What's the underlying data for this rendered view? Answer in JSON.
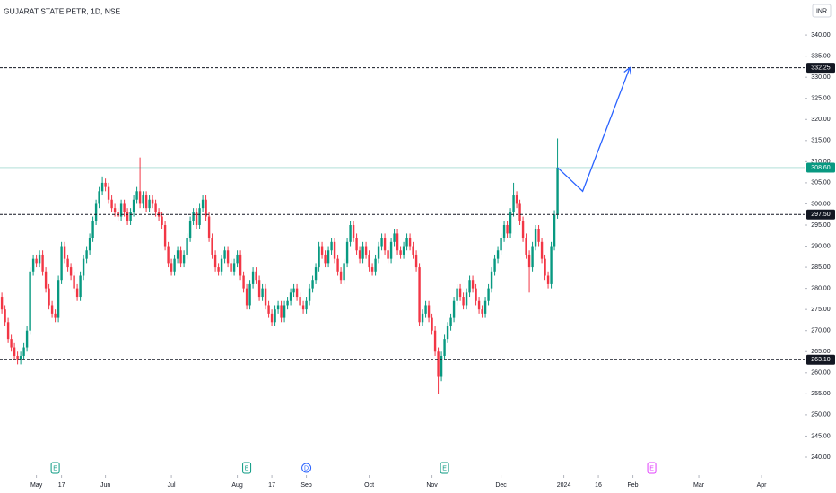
{
  "chart_data": {
    "type": "candlestick",
    "title": "GUJARAT STATE PETR, 1D, NSE",
    "currency": "INR",
    "up_color": "#089981",
    "down_color": "#f23645",
    "open": [
      278,
      275,
      272,
      268,
      266,
      264,
      263,
      264,
      266,
      270,
      284,
      287,
      286,
      288,
      284,
      280,
      276,
      274,
      273,
      282,
      290,
      287,
      285,
      283,
      280,
      278,
      283,
      287,
      289,
      292,
      296,
      300,
      303,
      305,
      304,
      301,
      299,
      298,
      297,
      300,
      298,
      296,
      298,
      301,
      303,
      300,
      302,
      299,
      301,
      300,
      298,
      297,
      295,
      290,
      286,
      284,
      287,
      289,
      286,
      288,
      292,
      296,
      298,
      295,
      299,
      301,
      297,
      292,
      288,
      285,
      284,
      287,
      289,
      286,
      284,
      286,
      288,
      283,
      280,
      276,
      281,
      284,
      282,
      278,
      280,
      276,
      274,
      272,
      275,
      276,
      273,
      276,
      277,
      279,
      280,
      278,
      276,
      275,
      277,
      280,
      282,
      285,
      290,
      288,
      286,
      289,
      291,
      287,
      284,
      282,
      286,
      291,
      295,
      292,
      289,
      287,
      290,
      288,
      285,
      284,
      287,
      290,
      292,
      289,
      287,
      291,
      293,
      289,
      288,
      290,
      292,
      290,
      288,
      285,
      272,
      274,
      276,
      273,
      270,
      265,
      259,
      264,
      268,
      271,
      273,
      277,
      280,
      278,
      276,
      279,
      282,
      280,
      277,
      275,
      274,
      277,
      280,
      284,
      287,
      289,
      292,
      295,
      293,
      298,
      302,
      300,
      296,
      292,
      288,
      285,
      290,
      294,
      291,
      287,
      283,
      281,
      290,
      297.5
    ],
    "high": [
      279,
      276,
      273,
      269,
      267,
      265,
      265,
      267,
      271,
      285,
      288,
      288,
      289,
      289,
      285,
      281,
      277,
      275,
      283,
      291,
      291,
      288,
      286,
      284,
      281,
      284,
      288,
      290,
      293,
      297,
      301,
      304,
      306.5,
      306,
      305,
      302,
      300,
      299,
      301,
      301,
      299,
      299,
      302,
      304,
      311,
      303,
      303,
      302,
      302,
      301,
      299,
      298,
      296,
      291,
      287,
      288,
      290,
      290,
      289,
      293,
      297,
      299,
      299,
      300,
      302,
      302,
      298,
      293,
      289,
      286,
      288,
      290,
      290,
      287,
      287,
      289,
      289,
      284,
      281,
      282,
      285,
      285,
      283,
      281,
      281,
      277,
      275,
      276,
      277,
      277,
      277,
      278,
      280,
      281,
      281,
      279,
      277,
      278,
      281,
      283,
      286,
      291,
      291,
      289,
      290,
      292,
      292,
      288,
      285,
      287,
      292,
      296,
      296,
      293,
      290,
      291,
      291,
      289,
      286,
      288,
      291,
      293,
      293,
      290,
      292,
      294,
      294,
      290,
      291,
      293,
      293,
      291,
      289,
      286,
      275,
      277,
      277,
      274,
      271,
      266,
      265,
      269,
      272,
      274,
      278,
      281,
      281,
      279,
      280,
      283,
      283,
      281,
      278,
      276,
      278,
      281,
      285,
      288,
      290,
      293,
      296,
      296,
      299,
      305,
      303,
      301,
      297,
      293,
      289,
      291,
      295,
      295,
      292,
      288,
      284,
      291,
      298.5,
      315.5
    ],
    "low": [
      274,
      271,
      267,
      265,
      263,
      262,
      262,
      263,
      265,
      269,
      283,
      285,
      285,
      283,
      279,
      275,
      273,
      272,
      272,
      281,
      286,
      284,
      282,
      279,
      277,
      277,
      282,
      286,
      288,
      291,
      295,
      299,
      302,
      303,
      300,
      298,
      297,
      296,
      296,
      297,
      295,
      295,
      297,
      300,
      299,
      299,
      298,
      298,
      299,
      297,
      296,
      294,
      289,
      285,
      283,
      283,
      286,
      285,
      285,
      287,
      291,
      295,
      294,
      294,
      298,
      296,
      291,
      287,
      284,
      283,
      283,
      286,
      285,
      283,
      283,
      285,
      282,
      279,
      275,
      275,
      280,
      281,
      277,
      277,
      275,
      273,
      271,
      271,
      274,
      272,
      272,
      275,
      276,
      278,
      277,
      275,
      274,
      274,
      276,
      279,
      281,
      284,
      287,
      285,
      285,
      288,
      286,
      283,
      281,
      281,
      285,
      290,
      291,
      288,
      286,
      286,
      287,
      284,
      283,
      283,
      286,
      289,
      288,
      286,
      286,
      290,
      288,
      287,
      287,
      289,
      289,
      287,
      284,
      271,
      271,
      273,
      272,
      269,
      264,
      255,
      258,
      263,
      267,
      270,
      272,
      276,
      277,
      275,
      275,
      278,
      279,
      276,
      274,
      273,
      273,
      276,
      279,
      283,
      286,
      288,
      291,
      292,
      292,
      297,
      299,
      295,
      291,
      287,
      279,
      284,
      289,
      290,
      286,
      282,
      280,
      280,
      289,
      296.5
    ],
    "close": [
      275,
      272,
      268,
      266,
      264,
      263,
      264,
      266,
      270,
      284,
      287,
      286,
      288,
      284,
      280,
      276,
      274,
      273,
      282,
      290,
      287,
      285,
      283,
      280,
      278,
      283,
      287,
      289,
      292,
      296,
      300,
      303,
      305,
      304,
      301,
      299,
      298,
      297,
      300,
      298,
      296,
      298,
      301,
      303,
      300,
      302,
      299,
      301,
      300,
      298,
      297,
      295,
      290,
      286,
      284,
      287,
      289,
      286,
      288,
      292,
      296,
      298,
      295,
      299,
      301,
      297,
      292,
      288,
      285,
      284,
      287,
      289,
      286,
      284,
      286,
      288,
      283,
      280,
      276,
      281,
      284,
      282,
      278,
      280,
      276,
      274,
      272,
      275,
      276,
      273,
      276,
      277,
      279,
      280,
      278,
      276,
      275,
      277,
      280,
      282,
      285,
      290,
      288,
      286,
      289,
      291,
      287,
      284,
      282,
      286,
      291,
      295,
      292,
      289,
      287,
      290,
      288,
      285,
      284,
      287,
      290,
      292,
      289,
      287,
      291,
      293,
      289,
      288,
      290,
      292,
      290,
      288,
      285,
      272,
      274,
      276,
      273,
      270,
      265,
      259,
      264,
      268,
      271,
      273,
      277,
      280,
      278,
      276,
      279,
      282,
      280,
      277,
      275,
      274,
      277,
      280,
      284,
      287,
      289,
      292,
      295,
      293,
      298,
      302,
      300,
      296,
      292,
      288,
      285,
      290,
      294,
      291,
      287,
      283,
      281,
      290,
      297.5,
      308.6
    ],
    "xlim": [
      -0.6,
      255.7
    ],
    "ylim": [
      235.75,
      348.3
    ],
    "xticks": [
      {
        "value": 11,
        "label": "May"
      },
      {
        "value": 19,
        "label": "17"
      },
      {
        "value": 33,
        "label": "Jun"
      },
      {
        "value": 54,
        "label": "Jul"
      },
      {
        "value": 75,
        "label": "Aug"
      },
      {
        "value": 86,
        "label": "17"
      },
      {
        "value": 97,
        "label": "Sep"
      },
      {
        "value": 117,
        "label": "Oct"
      },
      {
        "value": 137,
        "label": "Nov"
      },
      {
        "value": 159,
        "label": "Dec"
      },
      {
        "value": 179,
        "label": "2024"
      },
      {
        "value": 190,
        "label": "16"
      },
      {
        "value": 201,
        "label": "Feb"
      },
      {
        "value": 222,
        "label": "Mar"
      },
      {
        "value": 242,
        "label": "Apr"
      }
    ],
    "yticks": [
      {
        "value": 340,
        "label": "340.00"
      },
      {
        "value": 335,
        "label": "335.00"
      },
      {
        "value": 330,
        "label": "330.00"
      },
      {
        "value": 325,
        "label": "325.00"
      },
      {
        "value": 320,
        "label": "320.00"
      },
      {
        "value": 315,
        "label": "315.00"
      },
      {
        "value": 310,
        "label": "310.00"
      },
      {
        "value": 305,
        "label": "305.00"
      },
      {
        "value": 300,
        "label": "300.00"
      },
      {
        "value": 295,
        "label": "295.00"
      },
      {
        "value": 290,
        "label": "290.00"
      },
      {
        "value": 285,
        "label": "285.00"
      },
      {
        "value": 280,
        "label": "280.00"
      },
      {
        "value": 275,
        "label": "275.00"
      },
      {
        "value": 270,
        "label": "270.00"
      },
      {
        "value": 265,
        "label": "265.00"
      },
      {
        "value": 260,
        "label": "260.00"
      },
      {
        "value": 255,
        "label": "255.00"
      },
      {
        "value": 250,
        "label": "250.00"
      },
      {
        "value": 245,
        "label": "245.00"
      },
      {
        "value": 240,
        "label": "240.00"
      }
    ],
    "price_lines": [
      {
        "value": 332.25,
        "label": "332.25",
        "style": "dashed",
        "color": "#131722"
      },
      {
        "value": 308.6,
        "label": "308.60",
        "style": "solid",
        "color": "#089981"
      },
      {
        "value": 297.5,
        "label": "297.50",
        "style": "dashed",
        "color": "#131722"
      },
      {
        "value": 263.1,
        "label": "263.10",
        "style": "dashed",
        "color": "#131722"
      }
    ],
    "events": [
      {
        "index": 17,
        "label": "E",
        "color": "#089981"
      },
      {
        "index": 78,
        "label": "E",
        "color": "#089981"
      },
      {
        "index": 97,
        "label": "D",
        "color": "#2962ff"
      },
      {
        "index": 141,
        "label": "E",
        "color": "#089981"
      },
      {
        "index": 207,
        "label": "E",
        "color": "#e040fb"
      }
    ],
    "drawing": {
      "type": "arrow",
      "color": "#2962ff",
      "x": [
        177,
        185,
        200
      ],
      "y": [
        308.6,
        303,
        332.25
      ]
    }
  }
}
